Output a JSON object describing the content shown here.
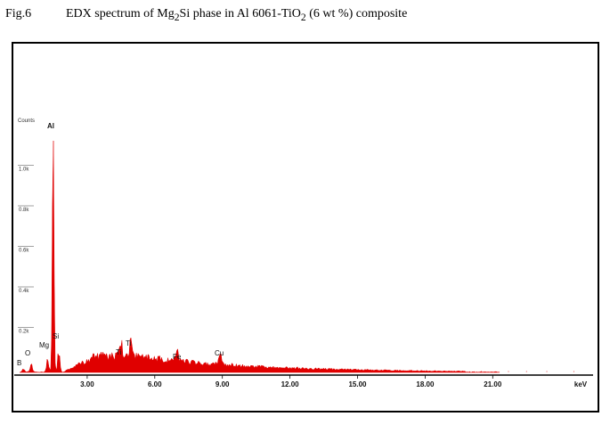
{
  "caption": {
    "fig": "Fig.6",
    "pre": "EDX spectrum of Mg",
    "sub1": "2",
    "mid": "Si phase in Al 6061-TiO",
    "sub2": "2",
    "post": " (6 wt %) composite"
  },
  "chart_data": {
    "type": "line",
    "title": "EDX spectrum of Mg2Si phase in Al 6061-TiO2 (6 wt %) composite",
    "xlabel": "keV",
    "ylabel": "Counts",
    "xlim": [
      0,
      26
    ],
    "ylim": [
      0,
      1.3
    ],
    "x_ticks": [
      3,
      6,
      9,
      12,
      15,
      18,
      21
    ],
    "x_tick_labels": [
      "3.00",
      "6.00",
      "9.00",
      "12.00",
      "15.00",
      "18.00",
      "21.00"
    ],
    "y_ticks": [
      0.2,
      0.4,
      0.6,
      0.8,
      1.0
    ],
    "y_tick_labels": [
      "0.2k",
      "0.4k",
      "0.6k",
      "0.8k",
      "1.0k"
    ],
    "color": "#e00000",
    "background": {
      "start_keV": 1.9,
      "end_keV": 19.8,
      "peak_level_k": 0.09
    },
    "peaks": [
      {
        "label": "B",
        "keV": 0.18,
        "counts_k": 0.02
      },
      {
        "label": "O",
        "keV": 0.52,
        "counts_k": 0.045
      },
      {
        "label": "Mg",
        "keV": 1.25,
        "counts_k": 0.08
      },
      {
        "label": "Al",
        "keV": 1.49,
        "counts_k": 1.19
      },
      {
        "label": "Si",
        "keV": 1.74,
        "counts_k": 0.13
      },
      {
        "label": "Ti",
        "keV": 4.51,
        "counts_k": 0.11
      },
      {
        "label": "Ti",
        "keV": 4.93,
        "counts_k": 0.13
      },
      {
        "label": "Fe",
        "keV": 7.0,
        "counts_k": 0.075
      },
      {
        "label": "Cu",
        "keV": 8.9,
        "counts_k": 0.07
      }
    ]
  }
}
